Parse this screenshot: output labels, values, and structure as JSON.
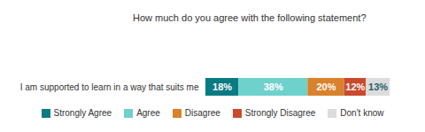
{
  "chart_data": {
    "type": "bar",
    "title": "How much do you agree with the following statement?",
    "orientation": "horizontal",
    "stacked": true,
    "data_labels": true,
    "tick_labels": "y",
    "legend": "bottom",
    "categories": [
      "I am supported to learn in a way that suits me"
    ],
    "xlim": [
      0,
      101
    ],
    "series": [
      {
        "name": "Strongly Agree",
        "color": "#0a7b83",
        "values": [
          18
        ],
        "value_labels": [
          "18%"
        ]
      },
      {
        "name": "Agree",
        "color": "#6fd1cc",
        "values": [
          38
        ],
        "value_labels": [
          "38%"
        ]
      },
      {
        "name": "Disagree",
        "color": "#d9822b",
        "values": [
          20
        ],
        "value_labels": [
          "20%"
        ]
      },
      {
        "name": "Strongly Disagree",
        "color": "#c94a2c",
        "values": [
          12
        ],
        "value_labels": [
          "12%"
        ]
      },
      {
        "name": "Don't know",
        "color": "#dcdcdc",
        "values": [
          13
        ],
        "value_labels": [
          "13%"
        ]
      }
    ]
  }
}
